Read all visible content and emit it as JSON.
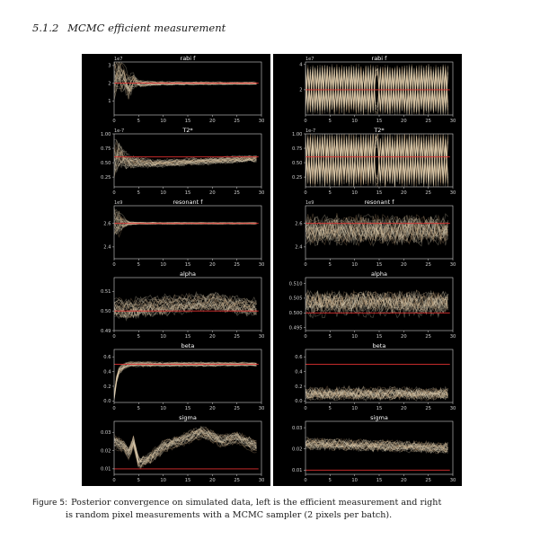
{
  "section": {
    "number": "5.1.2",
    "title": "MCMC efficient measurement"
  },
  "figure": {
    "label": "Figure 5:",
    "caption_line1": "Posterior convergence on simulated data, left is the efficient measurement and right",
    "caption_line2": "is random pixel measurements with a MCMC sampler (2 pixels per batch)."
  },
  "colors": {
    "background": "#000000",
    "axes": "#cfcfcf",
    "trace_light": "#e8dcc0",
    "trace_warm": "#c4a27a",
    "truth_line": "#e03030"
  },
  "chart_data": [
    {
      "type": "line",
      "panel": "left",
      "title": "rabi f",
      "multiplier": "1e7",
      "xlim": [
        0,
        30
      ],
      "ylim": [
        0.2,
        3.2
      ],
      "x_ticks": [
        0,
        5,
        10,
        15,
        20,
        25,
        30
      ],
      "y_ticks": [
        1,
        2,
        3
      ],
      "truth": 2.0,
      "pattern": "converge",
      "center": [
        [
          0,
          2.3
        ],
        [
          1,
          2.6
        ],
        [
          2,
          2.3
        ],
        [
          3,
          1.8
        ],
        [
          4,
          2.2
        ],
        [
          5,
          2.0
        ],
        [
          10,
          2.0
        ],
        [
          20,
          2.0
        ],
        [
          29,
          2.0
        ]
      ],
      "spread": [
        [
          0,
          1.3
        ],
        [
          1,
          1.1
        ],
        [
          2,
          0.8
        ],
        [
          3,
          0.9
        ],
        [
          4,
          0.5
        ],
        [
          5,
          0.25
        ],
        [
          8,
          0.15
        ],
        [
          15,
          0.1
        ],
        [
          29,
          0.08
        ]
      ]
    },
    {
      "type": "line",
      "panel": "right",
      "title": "rabi f",
      "multiplier": "1e7",
      "xlim": [
        0,
        30
      ],
      "ylim": [
        0.0,
        4.2
      ],
      "x_ticks": [
        0,
        5,
        10,
        15,
        20,
        25,
        30
      ],
      "y_ticks": [
        2,
        4
      ],
      "truth": 2.0,
      "pattern": "zigzag",
      "center": [
        [
          0,
          2.0
        ],
        [
          29,
          2.0
        ]
      ],
      "spread": [
        [
          0,
          1.9
        ],
        [
          29,
          1.9
        ]
      ]
    },
    {
      "type": "line",
      "panel": "left",
      "title": "T2*",
      "multiplier": "1e-7",
      "xlim": [
        0,
        30
      ],
      "ylim": [
        0.08,
        1.0
      ],
      "x_ticks": [
        0,
        5,
        10,
        15,
        20,
        25,
        30
      ],
      "y_ticks": [
        0.25,
        0.5,
        0.75,
        1.0
      ],
      "y_tick_labels": [
        "0.25",
        "0.50",
        "0.75",
        "1.00"
      ],
      "truth": 0.6,
      "pattern": "converge",
      "center": [
        [
          0,
          0.55
        ],
        [
          1,
          0.6
        ],
        [
          2,
          0.55
        ],
        [
          3,
          0.5
        ],
        [
          5,
          0.5
        ],
        [
          8,
          0.48
        ],
        [
          12,
          0.5
        ],
        [
          18,
          0.52
        ],
        [
          25,
          0.55
        ],
        [
          29,
          0.57
        ]
      ],
      "spread": [
        [
          0,
          0.45
        ],
        [
          1,
          0.3
        ],
        [
          2,
          0.2
        ],
        [
          4,
          0.12
        ],
        [
          8,
          0.08
        ],
        [
          29,
          0.07
        ]
      ]
    },
    {
      "type": "line",
      "panel": "right",
      "title": "T2*",
      "multiplier": "1e-7",
      "xlim": [
        0,
        30
      ],
      "ylim": [
        0.08,
        1.0
      ],
      "x_ticks": [
        0,
        5,
        10,
        15,
        20,
        25,
        30
      ],
      "y_ticks": [
        0.25,
        0.5,
        0.75,
        1.0
      ],
      "y_tick_labels": [
        "0.25",
        "0.50",
        "0.75",
        "1.00"
      ],
      "truth": 0.6,
      "pattern": "zigzag",
      "center": [
        [
          0,
          0.55
        ],
        [
          29,
          0.55
        ]
      ],
      "spread": [
        [
          0,
          0.45
        ],
        [
          29,
          0.45
        ]
      ]
    },
    {
      "type": "line",
      "panel": "left",
      "title": "resonant f",
      "multiplier": "1e9",
      "xlim": [
        0,
        30
      ],
      "ylim": [
        2.3,
        2.75
      ],
      "x_ticks": [
        0,
        5,
        10,
        15,
        20,
        25,
        30
      ],
      "y_ticks": [
        2.4,
        2.6
      ],
      "truth": 2.6,
      "pattern": "converge",
      "center": [
        [
          0,
          2.6
        ],
        [
          29,
          2.6
        ]
      ],
      "spread": [
        [
          0,
          0.15
        ],
        [
          1,
          0.12
        ],
        [
          2,
          0.06
        ],
        [
          3,
          0.02
        ],
        [
          5,
          0.01
        ],
        [
          29,
          0.008
        ]
      ]
    },
    {
      "type": "line",
      "panel": "right",
      "title": "resonant f",
      "multiplier": "1e9",
      "xlim": [
        0,
        30
      ],
      "ylim": [
        2.3,
        2.75
      ],
      "x_ticks": [
        0,
        5,
        10,
        15,
        20,
        25,
        30
      ],
      "y_ticks": [
        2.4,
        2.6
      ],
      "truth": 2.6,
      "pattern": "noisy",
      "center": [
        [
          0,
          2.55
        ],
        [
          29,
          2.55
        ]
      ],
      "spread": [
        [
          0,
          0.12
        ],
        [
          29,
          0.12
        ]
      ]
    },
    {
      "type": "line",
      "panel": "left",
      "title": "alpha",
      "multiplier": "",
      "xlim": [
        0,
        30
      ],
      "ylim": [
        0.49,
        0.517
      ],
      "x_ticks": [
        0,
        5,
        10,
        15,
        20,
        25,
        30
      ],
      "y_ticks": [
        0.49,
        0.5,
        0.51
      ],
      "y_tick_labels": [
        "0.49",
        "0.50",
        "0.51"
      ],
      "truth": 0.5,
      "pattern": "converge",
      "center": [
        [
          0,
          0.502
        ],
        [
          3,
          0.501
        ],
        [
          5,
          0.502
        ],
        [
          10,
          0.503
        ],
        [
          15,
          0.504
        ],
        [
          20,
          0.505
        ],
        [
          25,
          0.503
        ],
        [
          29,
          0.502
        ]
      ],
      "spread": [
        [
          0,
          0.006
        ],
        [
          29,
          0.005
        ]
      ]
    },
    {
      "type": "line",
      "panel": "right",
      "title": "alpha",
      "multiplier": "",
      "xlim": [
        0,
        30
      ],
      "ylim": [
        0.494,
        0.512
      ],
      "x_ticks": [
        0,
        5,
        10,
        15,
        20,
        25,
        30
      ],
      "y_ticks": [
        0.495,
        0.5,
        0.505,
        0.51
      ],
      "y_tick_labels": [
        "0.495",
        "0.500",
        "0.505",
        "0.510"
      ],
      "truth": 0.5,
      "pattern": "noisy",
      "center": [
        [
          0,
          0.503
        ],
        [
          29,
          0.503
        ]
      ],
      "spread": [
        [
          0,
          0.004
        ],
        [
          29,
          0.004
        ]
      ]
    },
    {
      "type": "line",
      "panel": "left",
      "title": "beta",
      "multiplier": "",
      "xlim": [
        0,
        30
      ],
      "ylim": [
        -0.02,
        0.7
      ],
      "x_ticks": [
        0,
        5,
        10,
        15,
        20,
        25,
        30
      ],
      "y_ticks": [
        0.0,
        0.2,
        0.4,
        0.6
      ],
      "y_tick_labels": [
        "0.0",
        "0.2",
        "0.4",
        "0.6"
      ],
      "truth": 0.5,
      "pattern": "converge",
      "center": [
        [
          0,
          0.05
        ],
        [
          0.5,
          0.3
        ],
        [
          1,
          0.42
        ],
        [
          2,
          0.47
        ],
        [
          3,
          0.5
        ],
        [
          29,
          0.5
        ]
      ],
      "spread": [
        [
          0,
          0.05
        ],
        [
          1,
          0.06
        ],
        [
          3,
          0.04
        ],
        [
          29,
          0.03
        ]
      ]
    },
    {
      "type": "line",
      "panel": "right",
      "title": "beta",
      "multiplier": "",
      "xlim": [
        0,
        30
      ],
      "ylim": [
        -0.02,
        0.7
      ],
      "x_ticks": [
        0,
        5,
        10,
        15,
        20,
        25,
        30
      ],
      "y_ticks": [
        0.0,
        0.2,
        0.4,
        0.6
      ],
      "y_tick_labels": [
        "0.0",
        "0.2",
        "0.4",
        "0.6"
      ],
      "truth": 0.5,
      "pattern": "noisy",
      "center": [
        [
          0,
          0.1
        ],
        [
          29,
          0.1
        ]
      ],
      "spread": [
        [
          0,
          0.09
        ],
        [
          29,
          0.09
        ]
      ]
    },
    {
      "type": "line",
      "panel": "left",
      "title": "sigma",
      "multiplier": "",
      "xlim": [
        0,
        30
      ],
      "ylim": [
        0.007,
        0.036
      ],
      "x_ticks": [
        0,
        5,
        10,
        15,
        20,
        25,
        30
      ],
      "y_ticks": [
        0.01,
        0.02,
        0.03
      ],
      "y_tick_labels": [
        "0.01",
        "0.02",
        "0.03"
      ],
      "truth": 0.01,
      "pattern": "converge",
      "center": [
        [
          0,
          0.025
        ],
        [
          2,
          0.022
        ],
        [
          3,
          0.018
        ],
        [
          4,
          0.025
        ],
        [
          5,
          0.013
        ],
        [
          7,
          0.015
        ],
        [
          10,
          0.022
        ],
        [
          15,
          0.027
        ],
        [
          18,
          0.03
        ],
        [
          22,
          0.025
        ],
        [
          25,
          0.027
        ],
        [
          29,
          0.022
        ]
      ],
      "spread": [
        [
          0,
          0.004
        ],
        [
          29,
          0.004
        ]
      ]
    },
    {
      "type": "line",
      "panel": "right",
      "title": "sigma",
      "multiplier": "",
      "xlim": [
        0,
        30
      ],
      "ylim": [
        0.008,
        0.033
      ],
      "x_ticks": [
        0,
        5,
        10,
        15,
        20,
        25,
        30
      ],
      "y_ticks": [
        0.01,
        0.02,
        0.03
      ],
      "y_tick_labels": [
        "0.01",
        "0.02",
        "0.03"
      ],
      "truth": 0.01,
      "pattern": "noisy",
      "center": [
        [
          0,
          0.0225
        ],
        [
          29,
          0.0205
        ]
      ],
      "spread": [
        [
          0,
          0.0025
        ],
        [
          29,
          0.0025
        ]
      ]
    }
  ]
}
